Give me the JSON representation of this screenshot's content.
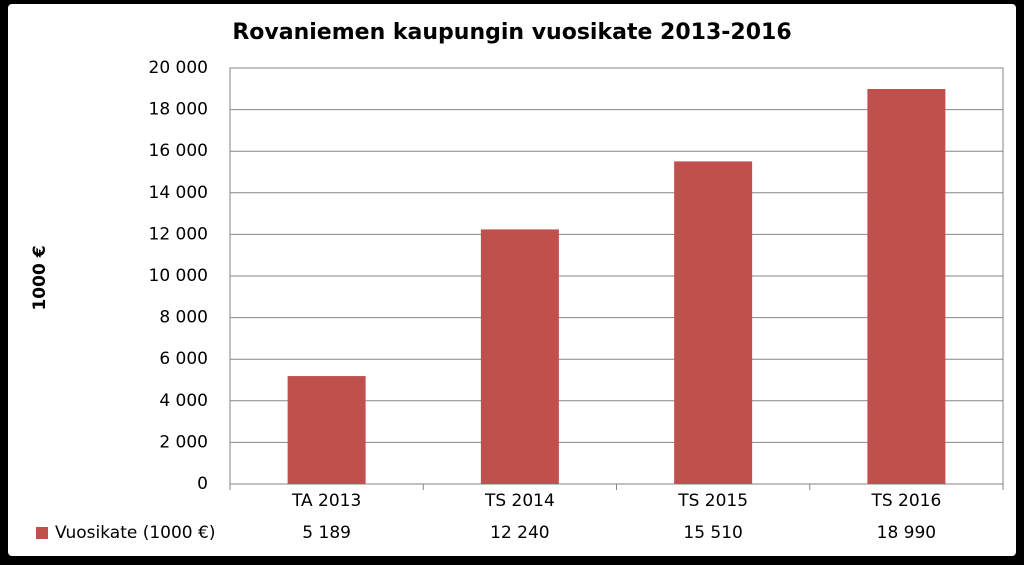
{
  "chart_data": {
    "type": "bar",
    "title": "Rovaniemen kaupungin vuosikate 2013-2016",
    "y_label": "1000 €",
    "categories": [
      "TA 2013",
      "TS 2014",
      "TS 2015",
      "TS 2016"
    ],
    "series": [
      {
        "name": "Vuosikate (1000 €)",
        "color": "#c0504d",
        "values": [
          5189,
          12240,
          15510,
          18990
        ],
        "value_labels": [
          "5 189",
          "12 240",
          "15 510",
          "18 990"
        ]
      }
    ],
    "ylim": [
      0,
      20000
    ],
    "yticks": [
      0,
      {
        "value": 2000,
        "label": "2 000"
      },
      {
        "value": 4000,
        "label": "4 000"
      },
      {
        "value": 6000,
        "label": "6 000"
      },
      {
        "value": 8000,
        "label": "8 000"
      },
      {
        "value": 10000,
        "label": "10 000"
      },
      {
        "value": 12000,
        "label": "12 000"
      },
      {
        "value": 14000,
        "label": "14 000"
      },
      {
        "value": 16000,
        "label": "16 000"
      },
      {
        "value": 18000,
        "label": "18 000"
      },
      {
        "value": 20000,
        "label": "20 000"
      }
    ],
    "grid": true
  }
}
